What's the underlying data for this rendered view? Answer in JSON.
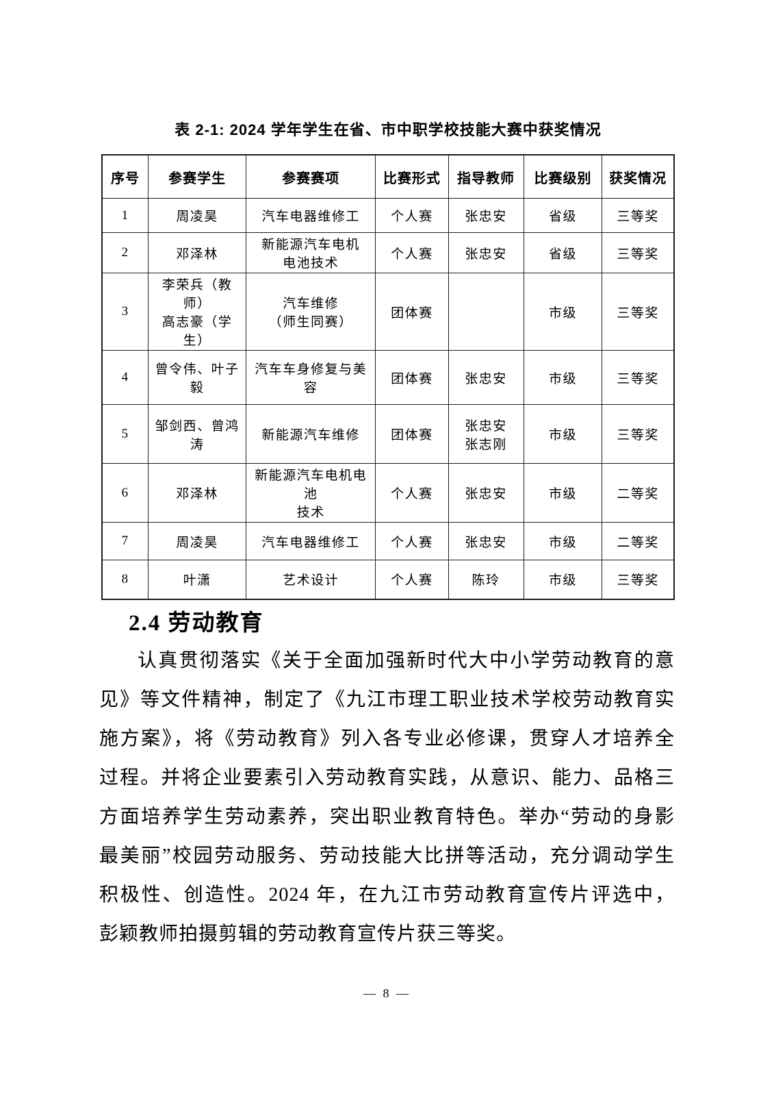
{
  "table": {
    "title": "表 2-1: 2024 学年学生在省、市中职学校技能大赛中获奖情况",
    "headers": [
      "序号",
      "参赛学生",
      "参赛赛项",
      "比赛形式",
      "指导教师",
      "比赛级别",
      "获奖情况"
    ],
    "rows": [
      {
        "no": "1",
        "student": "周凌昊",
        "event": "汽车电器维修工",
        "form": "个人赛",
        "teacher": "张忠安",
        "level": "省级",
        "award": "三等奖"
      },
      {
        "no": "2",
        "student": "邓泽林",
        "event": "新能源汽车电机\n电池技术",
        "form": "个人赛",
        "teacher": "张忠安",
        "level": "省级",
        "award": "三等奖"
      },
      {
        "no": "3",
        "student": "李荣兵（教师）\n高志豪（学生）",
        "event": "汽车维修\n（师生同赛）",
        "form": "团体赛",
        "teacher": "",
        "level": "市级",
        "award": "三等奖"
      },
      {
        "no": "4",
        "student": "曾令伟、叶子毅",
        "event": "汽车车身修复与美容",
        "form": "团体赛",
        "teacher": "张忠安",
        "level": "市级",
        "award": "三等奖"
      },
      {
        "no": "5",
        "student": "邹剑西、曾鸿涛",
        "event": "新能源汽车维修",
        "form": "团体赛",
        "teacher": "张忠安\n张志刚",
        "level": "市级",
        "award": "三等奖"
      },
      {
        "no": "6",
        "student": "邓泽林",
        "event": "新能源汽车电机电池\n技术",
        "form": "个人赛",
        "teacher": "张忠安",
        "level": "市级",
        "award": "二等奖"
      },
      {
        "no": "7",
        "student": "周凌昊",
        "event": "汽车电器维修工",
        "form": "个人赛",
        "teacher": "张忠安",
        "level": "市级",
        "award": "二等奖"
      },
      {
        "no": "8",
        "student": "叶潇",
        "event": "艺术设计",
        "form": "个人赛",
        "teacher": "陈玲",
        "level": "市级",
        "award": "三等奖"
      }
    ]
  },
  "section": {
    "heading": "2.4 劳动教育",
    "paragraph_lines": [
      "认真贯彻落实《关于全面加强新时代大中小学劳动教育的意",
      "见》等文件精神，制定了《九江市理工职业技术学校劳动教育实",
      "施方案》，将《劳动教育》列入各专业必修课，贯穿人才培养全",
      "过程。并将企业要素引入劳动教育实践，从意识、能力、品格三",
      "方面培养学生劳动素养，突出职业教育特色。举办“劳动的身影",
      "最美丽”校园劳动服务、劳动技能大比拼等活动，充分调动学生",
      "积极性、创造性。2024 年，在九江市劳动教育宣传片评选中，",
      "彭颖教师拍摄剪辑的劳动教育宣传片获三等奖。"
    ]
  },
  "page": {
    "number_label": "— 8 —"
  }
}
